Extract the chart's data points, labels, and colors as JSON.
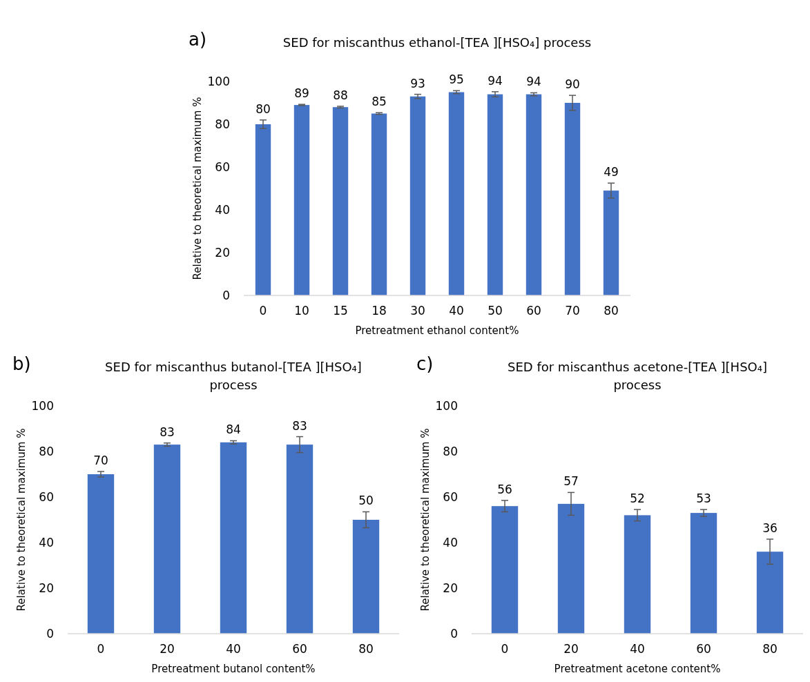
{
  "chart_data": [
    {
      "type": "bar",
      "title": "SED for miscanthus ethanol-[TEA ][HSO₄] process",
      "xlabel": "Pretreatment ethanol content%",
      "ylabel": "Relative to theoretical maximum %",
      "annotations": [
        "a)"
      ],
      "categories": [
        "0",
        "10",
        "15",
        "18",
        "30",
        "40",
        "50",
        "60",
        "70",
        "80"
      ],
      "values": [
        80,
        89,
        88,
        85,
        93,
        95,
        94,
        94,
        90,
        49
      ],
      "errors": [
        2,
        0.3,
        0.4,
        0.4,
        1,
        0.7,
        1.2,
        0.7,
        3.5,
        3.5
      ],
      "color": "#4472c4",
      "ylim": [
        0,
        100
      ],
      "yticks": [
        0,
        20,
        40,
        60,
        80,
        100
      ],
      "data_labels": true
    },
    {
      "type": "bar",
      "title": "SED for miscanthus butanol-[TEA ][HSO₄] process",
      "xlabel": "Pretreatment butanol content%",
      "ylabel": "Relative to theoretical maximum %",
      "annotations": [
        "b)"
      ],
      "categories": [
        "0",
        "20",
        "40",
        "60",
        "80"
      ],
      "values": [
        70,
        83,
        84,
        83,
        50
      ],
      "errors": [
        1.2,
        0.7,
        0.7,
        3.5,
        3.5
      ],
      "color": "#4472c4",
      "ylim": [
        0,
        100
      ],
      "yticks": [
        0,
        20,
        40,
        60,
        80,
        100
      ],
      "data_labels": true
    },
    {
      "type": "bar",
      "title": "SED for miscanthus acetone-[TEA ][HSO₄] process",
      "xlabel": "Pretreatment acetone content%",
      "ylabel": "Relative to theoretical maximum %",
      "annotations": [
        "c)"
      ],
      "categories": [
        "0",
        "20",
        "40",
        "60",
        "80"
      ],
      "values": [
        56,
        57,
        52,
        53,
        36
      ],
      "errors": [
        2.5,
        5,
        2.5,
        1.5,
        5.5
      ],
      "color": "#4472c4",
      "ylim": [
        0,
        100
      ],
      "yticks": [
        0,
        20,
        40,
        60,
        80,
        100
      ],
      "data_labels": true
    }
  ]
}
